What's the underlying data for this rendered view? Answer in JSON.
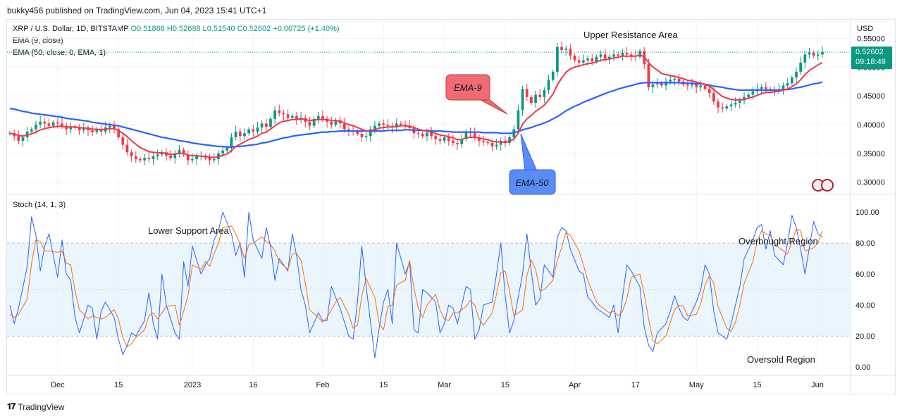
{
  "header": {
    "published": "bukky456 published on TradingView.com, Jun 04, 2023 15:41 UTC+1"
  },
  "legend": {
    "symbol": "XRP / U.S. Dollar, 1D, BITSTAMP",
    "ohlc": "O0.51866  H0.52688  L0.51540  C0.52602  +0.00725 (+1.40%)",
    "ema9": "EMA (9, close)",
    "ema50": "EMA (50, close, 0, EMA, 1)"
  },
  "currency": "USD",
  "price_label": {
    "value": "0.52602",
    "countdown": "09:18:49"
  },
  "stoch_label": "Stoch (14, 1, 3)",
  "annotations": {
    "upper_resistance": "Upper Resistance Area",
    "lower_support": "Lower Support Area",
    "overbought": "Overbought Region",
    "oversold": "Oversold Region",
    "ema9_callout": "EMA-9",
    "ema50_callout": "EMA-50"
  },
  "footer": {
    "brand": "TradingView"
  },
  "colors": {
    "up": "#089981",
    "down": "#f23645",
    "ema9": "#f23645",
    "ema50": "#2962ff",
    "stoch_k": "#2962ff",
    "stoch_d": "#ff6d00",
    "band": "#e3f2fd"
  },
  "chart_data": {
    "type": "candlestick",
    "title": "XRP / U.S. Dollar, 1D, BITSTAMP",
    "x_ticks": [
      "Dec",
      "15",
      "2023",
      "16",
      "Feb",
      "15",
      "Mar",
      "15",
      "Apr",
      "17",
      "May",
      "15",
      "Jun"
    ],
    "price_axis": {
      "ticks": [
        "0.55000",
        "0.50000",
        "0.45000",
        "0.40000",
        "0.35000",
        "0.30000"
      ],
      "ylim": [
        0.28,
        0.58
      ]
    },
    "stoch_axis": {
      "ticks": [
        "100.00",
        "80.00",
        "60.00",
        "40.00",
        "20.00",
        "0.00"
      ],
      "ylim": [
        -4,
        106
      ],
      "band": [
        20,
        80
      ],
      "midline": 50
    },
    "price_close": [
      0.385,
      0.38,
      0.372,
      0.378,
      0.388,
      0.392,
      0.4,
      0.405,
      0.402,
      0.398,
      0.404,
      0.402,
      0.398,
      0.392,
      0.396,
      0.394,
      0.39,
      0.393,
      0.39,
      0.387,
      0.392,
      0.388,
      0.395,
      0.398,
      0.392,
      0.378,
      0.365,
      0.352,
      0.345,
      0.34,
      0.338,
      0.342,
      0.34,
      0.345,
      0.348,
      0.352,
      0.346,
      0.342,
      0.35,
      0.356,
      0.348,
      0.338,
      0.34,
      0.345,
      0.345,
      0.342,
      0.338,
      0.34,
      0.35,
      0.355,
      0.36,
      0.378,
      0.388,
      0.38,
      0.385,
      0.392,
      0.388,
      0.395,
      0.402,
      0.396,
      0.41,
      0.425,
      0.42,
      0.418,
      0.412,
      0.415,
      0.408,
      0.412,
      0.405,
      0.398,
      0.41,
      0.415,
      0.41,
      0.405,
      0.4,
      0.408,
      0.402,
      0.392,
      0.39,
      0.388,
      0.384,
      0.378,
      0.38,
      0.392,
      0.398,
      0.402,
      0.4,
      0.398,
      0.395,
      0.402,
      0.4,
      0.398,
      0.394,
      0.385,
      0.384,
      0.38,
      0.386,
      0.38,
      0.375,
      0.372,
      0.378,
      0.372,
      0.368,
      0.366,
      0.375,
      0.388,
      0.385,
      0.378,
      0.372,
      0.37,
      0.368,
      0.362,
      0.365,
      0.372,
      0.368,
      0.378,
      0.392,
      0.425,
      0.462,
      0.448,
      0.438,
      0.452,
      0.448,
      0.46,
      0.478,
      0.492,
      0.535,
      0.53,
      0.532,
      0.52,
      0.512,
      0.508,
      0.512,
      0.515,
      0.51,
      0.518,
      0.522,
      0.515,
      0.518,
      0.522,
      0.52,
      0.525,
      0.522,
      0.52,
      0.518,
      0.528,
      0.505,
      0.465,
      0.47,
      0.472,
      0.468,
      0.475,
      0.478,
      0.48,
      0.475,
      0.47,
      0.468,
      0.47,
      0.465,
      0.468,
      0.462,
      0.455,
      0.44,
      0.43,
      0.428,
      0.432,
      0.435,
      0.438,
      0.442,
      0.448,
      0.452,
      0.458,
      0.462,
      0.465,
      0.462,
      0.46,
      0.458,
      0.462,
      0.468,
      0.472,
      0.482,
      0.492,
      0.508,
      0.522,
      0.525,
      0.52,
      0.522,
      0.526
    ],
    "ema9": [
      0.385,
      0.384,
      0.381,
      0.38,
      0.382,
      0.384,
      0.387,
      0.391,
      0.393,
      0.395,
      0.396,
      0.397,
      0.397,
      0.396,
      0.396,
      0.396,
      0.395,
      0.394,
      0.394,
      0.392,
      0.392,
      0.391,
      0.392,
      0.393,
      0.393,
      0.39,
      0.385,
      0.379,
      0.372,
      0.366,
      0.36,
      0.357,
      0.353,
      0.352,
      0.351,
      0.351,
      0.35,
      0.348,
      0.349,
      0.35,
      0.35,
      0.347,
      0.346,
      0.346,
      0.345,
      0.345,
      0.343,
      0.343,
      0.344,
      0.347,
      0.349,
      0.355,
      0.362,
      0.366,
      0.37,
      0.374,
      0.377,
      0.38,
      0.385,
      0.387,
      0.392,
      0.398,
      0.403,
      0.406,
      0.407,
      0.409,
      0.409,
      0.41,
      0.409,
      0.407,
      0.408,
      0.409,
      0.409,
      0.409,
      0.407,
      0.407,
      0.406,
      0.403,
      0.4,
      0.398,
      0.395,
      0.392,
      0.389,
      0.39,
      0.391,
      0.394,
      0.395,
      0.396,
      0.396,
      0.397,
      0.398,
      0.398,
      0.397,
      0.395,
      0.392,
      0.39,
      0.389,
      0.387,
      0.385,
      0.382,
      0.381,
      0.379,
      0.377,
      0.374,
      0.374,
      0.377,
      0.378,
      0.378,
      0.377,
      0.375,
      0.374,
      0.371,
      0.37,
      0.37,
      0.369,
      0.371,
      0.375,
      0.385,
      0.401,
      0.41,
      0.416,
      0.423,
      0.428,
      0.434,
      0.443,
      0.453,
      0.469,
      0.481,
      0.491,
      0.497,
      0.5,
      0.502,
      0.504,
      0.506,
      0.507,
      0.509,
      0.512,
      0.513,
      0.514,
      0.516,
      0.517,
      0.519,
      0.519,
      0.519,
      0.519,
      0.521,
      0.518,
      0.508,
      0.5,
      0.495,
      0.489,
      0.487,
      0.485,
      0.484,
      0.482,
      0.48,
      0.477,
      0.476,
      0.474,
      0.472,
      0.47,
      0.467,
      0.461,
      0.455,
      0.449,
      0.446,
      0.444,
      0.443,
      0.443,
      0.444,
      0.446,
      0.448,
      0.451,
      0.454,
      0.456,
      0.456,
      0.457,
      0.458,
      0.46,
      0.462,
      0.466,
      0.471,
      0.478,
      0.487,
      0.494,
      0.499,
      0.504,
      0.508
    ],
    "ema50": [
      0.428,
      0.427,
      0.425,
      0.423,
      0.422,
      0.42,
      0.419,
      0.418,
      0.417,
      0.416,
      0.415,
      0.414,
      0.413,
      0.411,
      0.41,
      0.409,
      0.408,
      0.407,
      0.406,
      0.404,
      0.403,
      0.402,
      0.401,
      0.4,
      0.399,
      0.398,
      0.396,
      0.394,
      0.392,
      0.39,
      0.388,
      0.386,
      0.384,
      0.382,
      0.38,
      0.378,
      0.377,
      0.375,
      0.374,
      0.372,
      0.371,
      0.37,
      0.368,
      0.367,
      0.366,
      0.365,
      0.364,
      0.363,
      0.362,
      0.362,
      0.361,
      0.361,
      0.362,
      0.362,
      0.363,
      0.364,
      0.365,
      0.366,
      0.368,
      0.369,
      0.371,
      0.373,
      0.375,
      0.377,
      0.378,
      0.38,
      0.381,
      0.382,
      0.383,
      0.384,
      0.385,
      0.386,
      0.387,
      0.387,
      0.388,
      0.388,
      0.389,
      0.389,
      0.389,
      0.389,
      0.389,
      0.389,
      0.389,
      0.389,
      0.389,
      0.389,
      0.389,
      0.39,
      0.39,
      0.39,
      0.39,
      0.391,
      0.391,
      0.39,
      0.39,
      0.39,
      0.39,
      0.389,
      0.389,
      0.389,
      0.388,
      0.388,
      0.387,
      0.387,
      0.387,
      0.387,
      0.387,
      0.387,
      0.387,
      0.386,
      0.386,
      0.386,
      0.386,
      0.385,
      0.385,
      0.385,
      0.386,
      0.388,
      0.391,
      0.393,
      0.395,
      0.398,
      0.4,
      0.403,
      0.406,
      0.41,
      0.414,
      0.419,
      0.424,
      0.428,
      0.432,
      0.435,
      0.439,
      0.442,
      0.445,
      0.448,
      0.451,
      0.454,
      0.457,
      0.459,
      0.462,
      0.464,
      0.466,
      0.468,
      0.47,
      0.472,
      0.473,
      0.473,
      0.473,
      0.473,
      0.473,
      0.473,
      0.473,
      0.473,
      0.473,
      0.472,
      0.472,
      0.472,
      0.471,
      0.471,
      0.47,
      0.469,
      0.467,
      0.466,
      0.465,
      0.463,
      0.462,
      0.461,
      0.46,
      0.46,
      0.46,
      0.46,
      0.46,
      0.46,
      0.46,
      0.46,
      0.46,
      0.46,
      0.461,
      0.461,
      0.462,
      0.464,
      0.465,
      0.467,
      0.469,
      0.471,
      0.472,
      0.474
    ],
    "stoch_k": [
      40,
      28,
      38,
      65,
      97,
      85,
      62,
      78,
      86,
      58,
      82,
      60,
      56,
      32,
      22,
      40,
      38,
      18,
      36,
      42,
      32,
      18,
      8,
      14,
      22,
      20,
      30,
      48,
      28,
      18,
      60,
      40,
      22,
      18,
      68,
      52,
      78,
      60,
      66,
      70,
      82,
      88,
      100,
      86,
      72,
      80,
      58,
      100,
      82,
      70,
      90,
      78,
      56,
      70,
      62,
      86,
      72,
      50,
      40,
      22,
      35,
      30,
      30,
      52,
      45,
      38,
      20,
      18,
      42,
      78,
      52,
      6,
      25,
      42,
      50,
      28,
      80,
      60,
      68,
      24,
      22,
      50,
      48,
      42,
      22,
      28,
      40,
      38,
      28,
      52,
      50,
      18,
      24,
      40,
      42,
      60,
      80,
      46,
      22,
      30,
      60,
      86,
      62,
      40,
      44,
      66,
      58,
      84,
      90,
      88,
      76,
      62,
      60,
      45,
      42,
      38,
      36,
      32,
      40,
      22,
      45,
      66,
      62,
      52,
      26,
      14,
      10,
      22,
      28,
      36,
      46,
      38,
      32,
      30,
      42,
      50,
      66,
      60,
      36,
      22,
      18,
      28,
      40,
      52,
      70,
      82,
      90,
      92,
      76,
      88,
      72,
      66,
      80,
      98,
      90,
      76,
      60,
      94,
      86,
      84
    ],
    "stoch_d": [
      34,
      32,
      34,
      44,
      67,
      82,
      81,
      75,
      75,
      74,
      75,
      67,
      66,
      49,
      37,
      31,
      33,
      32,
      31,
      32,
      37,
      31,
      19,
      13,
      15,
      19,
      24,
      33,
      35,
      31,
      35,
      39,
      40,
      27,
      36,
      46,
      66,
      63,
      68,
      65,
      73,
      80,
      90,
      91,
      86,
      79,
      70,
      79,
      80,
      84,
      81,
      79,
      75,
      68,
      63,
      73,
      73,
      69,
      54,
      37,
      32,
      29,
      32,
      37,
      42,
      45,
      34,
      25,
      27,
      46,
      57,
      45,
      28,
      24,
      39,
      40,
      53,
      56,
      69,
      51,
      38,
      32,
      40,
      47,
      37,
      31,
      30,
      35,
      35,
      39,
      43,
      40,
      31,
      27,
      35,
      47,
      61,
      62,
      49,
      33,
      37,
      59,
      69,
      63,
      49,
      50,
      56,
      69,
      77,
      87,
      85,
      75,
      66,
      56,
      49,
      42,
      39,
      35,
      36,
      33,
      36,
      44,
      58,
      60,
      47,
      31,
      17,
      15,
      20,
      29,
      37,
      40,
      39,
      33,
      34,
      41,
      53,
      59,
      54,
      39,
      25,
      23,
      29,
      40,
      54,
      68,
      81,
      88,
      86,
      85,
      79,
      75,
      73,
      81,
      89,
      88,
      75,
      77,
      80,
      88
    ]
  }
}
